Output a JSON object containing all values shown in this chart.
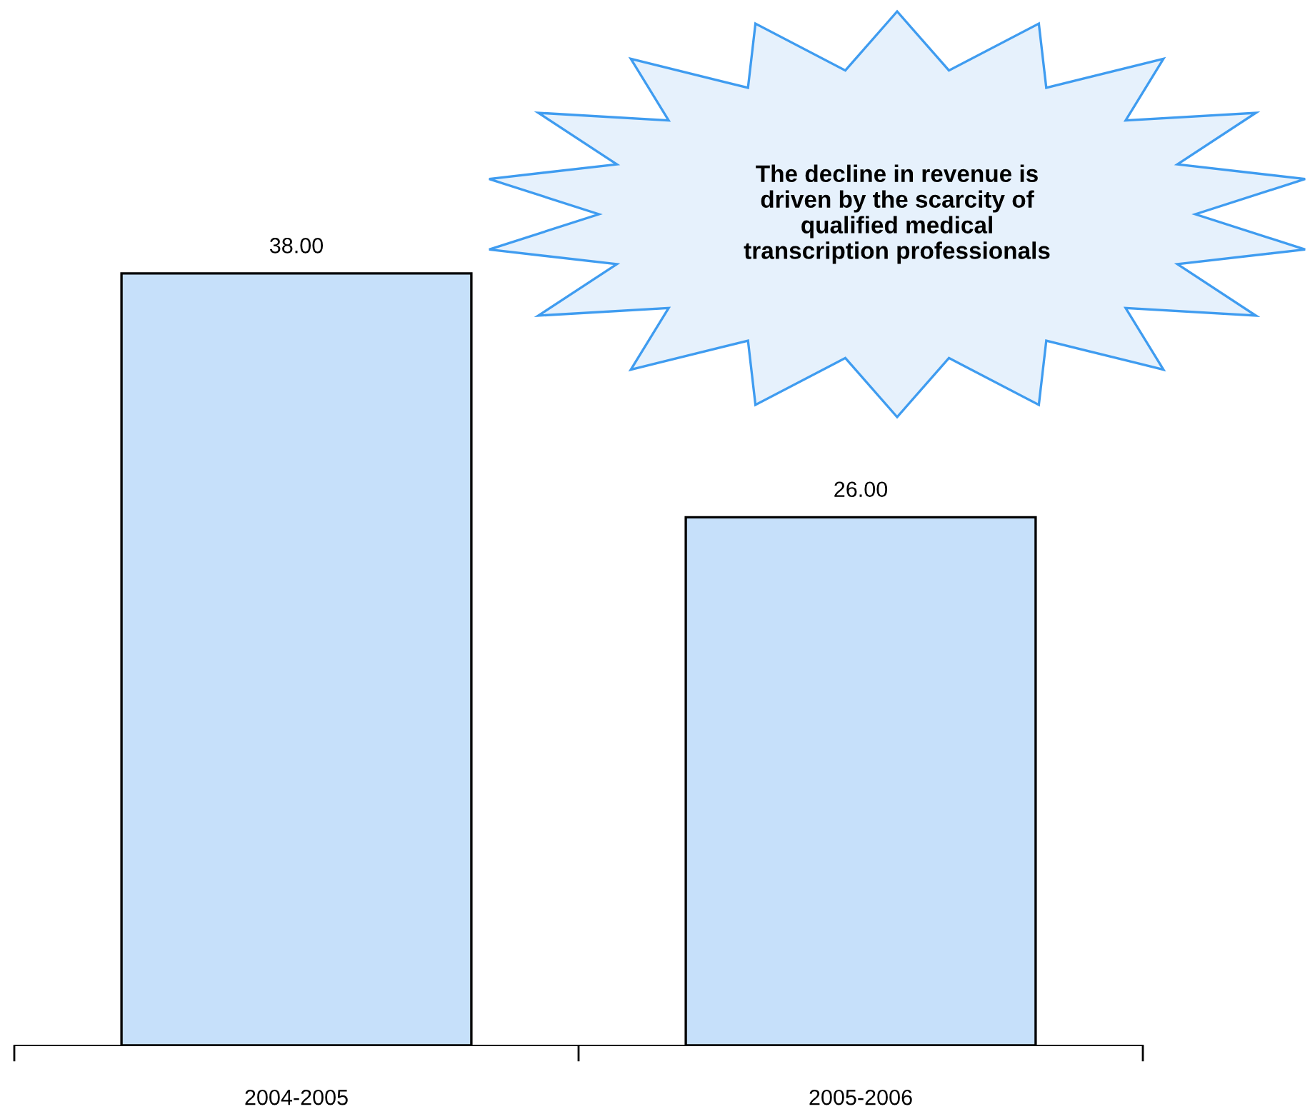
{
  "chart_data": {
    "type": "bar",
    "categories": [
      "2004-2005",
      "2005-2006"
    ],
    "values": [
      38.0,
      26.0
    ],
    "value_labels": [
      "38.00",
      "26.00"
    ],
    "color": "#c6e0fa",
    "annotations": [
      "The decline in revenue is\ndriven by the scarcity of\nqualified medical\ntranscription professionals"
    ],
    "grid": false,
    "legend": false
  }
}
